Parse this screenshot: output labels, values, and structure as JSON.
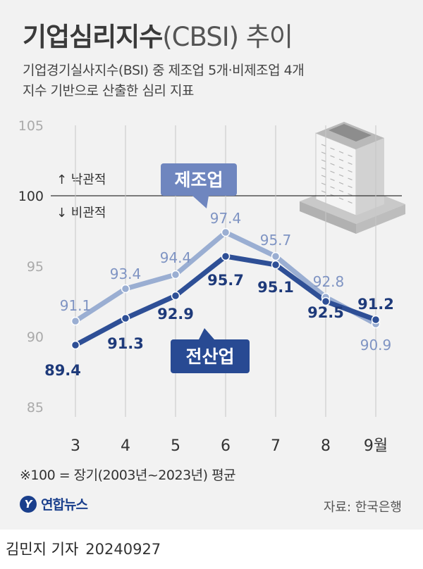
{
  "header": {
    "title_main": "기업심리지수",
    "title_paren": "(CBSI) 추이",
    "subtitle_line1": "기업경기실사지수(BSI) 중 제조업 5개·비제조업 4개",
    "subtitle_line2": "지수 기반으로 산출한 심리 지표"
  },
  "chart_data": {
    "type": "line",
    "categories": [
      "3",
      "4",
      "5",
      "6",
      "7",
      "8",
      "9월"
    ],
    "ylim": [
      85,
      105
    ],
    "yticks": [
      105,
      100,
      95,
      90,
      85
    ],
    "reference_line": 100,
    "reference_labels": {
      "above": "↑ 낙관적",
      "below": "↓ 비관적"
    },
    "series": [
      {
        "name": "제조업",
        "color": "#9aaed2",
        "label_color": "#7f94c3",
        "tag_color": "#6f86bf",
        "values": [
          91.1,
          93.4,
          94.4,
          97.4,
          95.7,
          92.8,
          90.9
        ]
      },
      {
        "name": "전산업",
        "color": "#2e4f96",
        "label_color": "#1e3a7a",
        "tag_color": "#284a93",
        "values": [
          89.4,
          91.3,
          92.9,
          95.7,
          95.1,
          92.5,
          91.2
        ]
      }
    ],
    "grid": false
  },
  "footer": {
    "note": "※100 = 장기(2003년~2023년) 평균",
    "logo_text": "연합뉴스",
    "logo_mark": "Y",
    "source": "자료: 한국은행",
    "reporter": "김민지 기자",
    "date": "20240927"
  }
}
